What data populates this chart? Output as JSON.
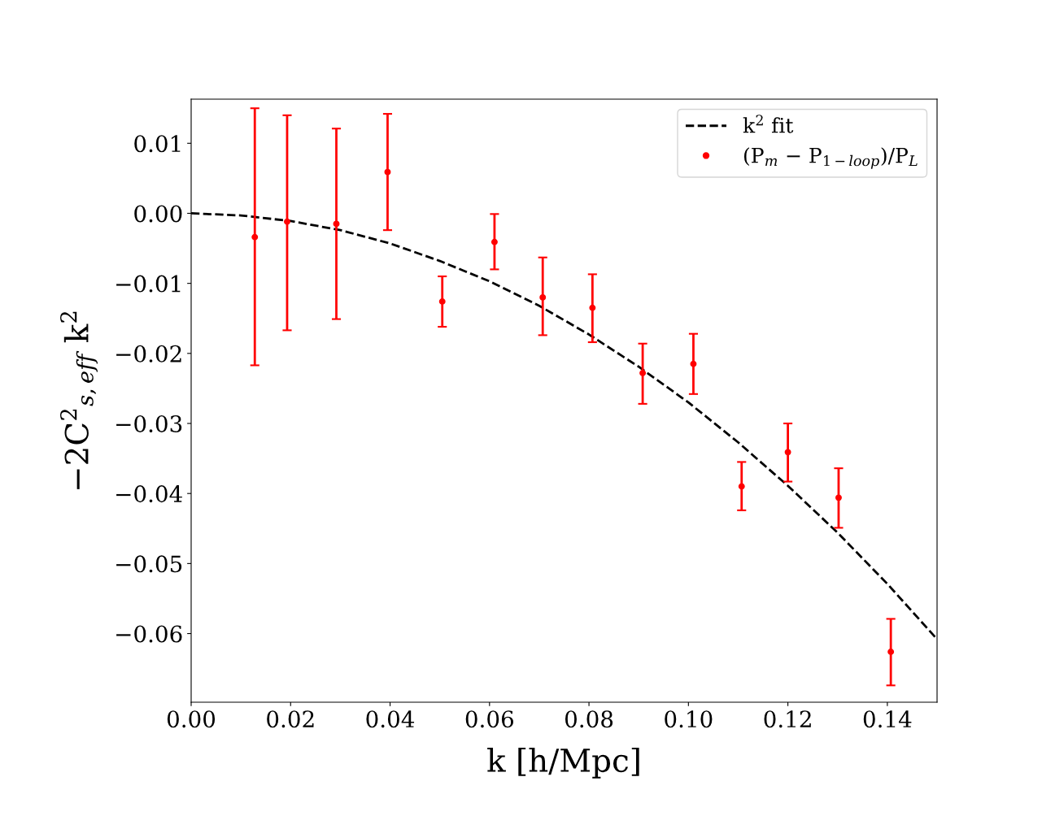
{
  "chart_data": {
    "type": "scatter",
    "xlabel": "k [h/Mpc]",
    "ylabel": "−2C$^{2}$$_{s,eff}$ k$^{2}$",
    "xlim": [
      0,
      0.15
    ],
    "ylim": [
      -0.0698,
      0.0163
    ],
    "xticks": [
      {
        "value": 0,
        "label": "0.00"
      },
      {
        "value": 0.02,
        "label": "0.02"
      },
      {
        "value": 0.04,
        "label": "0.04"
      },
      {
        "value": 0.06,
        "label": "0.06"
      },
      {
        "value": 0.08,
        "label": "0.08"
      },
      {
        "value": 0.1,
        "label": "0.10"
      },
      {
        "value": 0.12,
        "label": "0.12"
      },
      {
        "value": 0.14,
        "label": "0.14"
      }
    ],
    "yticks": [
      {
        "value": 0.01,
        "label": "0.01"
      },
      {
        "value": 0,
        "label": "0.00"
      },
      {
        "value": -0.01,
        "label": "−0.01"
      },
      {
        "value": -0.02,
        "label": "−0.02"
      },
      {
        "value": -0.03,
        "label": "−0.03"
      },
      {
        "value": -0.04,
        "label": "−0.04"
      },
      {
        "value": -0.05,
        "label": "−0.05"
      },
      {
        "value": -0.06,
        "label": "−0.06"
      }
    ],
    "legend": "top right",
    "grid": false,
    "series": [
      {
        "name": "k$^{2}$ fit",
        "type": "line",
        "line_style": "dashed",
        "marker": "none",
        "color": "#000000",
        "x": [
          0,
          0.01,
          0.02,
          0.03,
          0.04,
          0.05,
          0.06,
          0.07,
          0.08,
          0.09,
          0.1,
          0.11,
          0.12,
          0.13,
          0.14,
          0.15
        ],
        "values": [
          0,
          -0.0003,
          -0.0011,
          -0.0024,
          -0.0043,
          -0.0068,
          -0.0097,
          -0.0132,
          -0.0173,
          -0.0219,
          -0.027,
          -0.0327,
          -0.0389,
          -0.0456,
          -0.0529,
          -0.0608
        ]
      },
      {
        "name": "(P$_{m}$ − P$_{1−loop}$)/P$_{L}$",
        "marker": "circle",
        "color": "#ff0000",
        "x": [
          0.0128,
          0.0193,
          0.0292,
          0.0395,
          0.0505,
          0.061,
          0.0707,
          0.0807,
          0.0908,
          0.101,
          0.1107,
          0.12,
          0.1302,
          0.1407
        ],
        "values": [
          -0.0034,
          -0.0012,
          -0.0015,
          0.0059,
          -0.0126,
          -0.0041,
          -0.012,
          -0.0135,
          -0.0228,
          -0.0215,
          -0.039,
          -0.0341,
          -0.0406,
          -0.0626
        ],
        "errors": [
          [
            -0.0217,
            0.015
          ],
          [
            -0.0167,
            0.014
          ],
          [
            -0.0151,
            0.0121
          ],
          [
            -0.0024,
            0.0142
          ],
          [
            -0.0162,
            -0.009
          ],
          [
            -0.008,
            -0.0001
          ],
          [
            -0.0174,
            -0.0063
          ],
          [
            -0.0184,
            -0.0087
          ],
          [
            -0.0272,
            -0.0186
          ],
          [
            -0.0258,
            -0.0172
          ],
          [
            -0.0424,
            -0.0355
          ],
          [
            -0.0383,
            -0.03
          ],
          [
            -0.0449,
            -0.0364
          ],
          [
            -0.0674,
            -0.0579
          ]
        ]
      }
    ]
  }
}
